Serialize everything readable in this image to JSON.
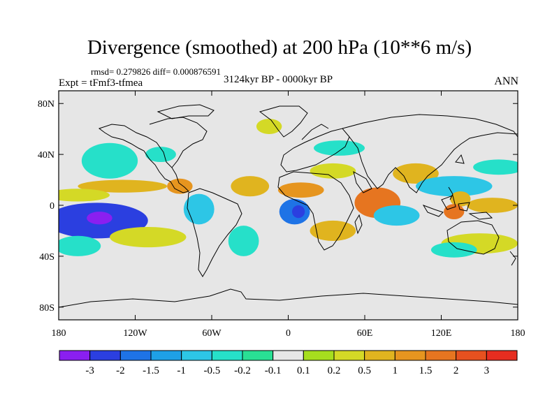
{
  "title": "Divergence (smoothed) at 200 hPa (10**6 m/s)",
  "stats": "rmsd= 0.279826 diff= 0.000876591",
  "experiment": "Expt = tFmf3-tfmea",
  "period": "3124kyr BP - 0000kyr BP",
  "season": "ANN",
  "map": {
    "background_color": "#e6e6e6",
    "lat_ticks": [
      {
        "value": 80,
        "label": "80N"
      },
      {
        "value": 40,
        "label": "40N"
      },
      {
        "value": 0,
        "label": "0"
      },
      {
        "value": -40,
        "label": "40S"
      },
      {
        "value": -80,
        "label": "80S"
      }
    ],
    "lon_ticks": [
      {
        "value": -180,
        "label": "180"
      },
      {
        "value": -120,
        "label": "120W"
      },
      {
        "value": -60,
        "label": "60W"
      },
      {
        "value": 0,
        "label": "0"
      },
      {
        "value": 60,
        "label": "60E"
      },
      {
        "value": 120,
        "label": "120E"
      },
      {
        "value": 180,
        "label": "180"
      }
    ],
    "anomalies": [
      {
        "lon": -150,
        "lat": -12,
        "rx": 40,
        "ry": 14,
        "level": -2
      },
      {
        "lon": -148,
        "lat": -10,
        "rx": 10,
        "ry": 5,
        "level": -3
      },
      {
        "lon": -140,
        "lat": 35,
        "rx": 22,
        "ry": 14,
        "level": -0.2
      },
      {
        "lon": -130,
        "lat": 15,
        "rx": 35,
        "ry": 5,
        "level": 0.5
      },
      {
        "lon": -165,
        "lat": 8,
        "rx": 25,
        "ry": 5,
        "level": 0.2
      },
      {
        "lon": -110,
        "lat": -25,
        "rx": 30,
        "ry": 8,
        "level": 0.2
      },
      {
        "lon": -165,
        "lat": -32,
        "rx": 18,
        "ry": 8,
        "level": -0.2
      },
      {
        "lon": -85,
        "lat": 15,
        "rx": 10,
        "ry": 6,
        "level": 1
      },
      {
        "lon": -100,
        "lat": 40,
        "rx": 12,
        "ry": 6,
        "level": -0.2
      },
      {
        "lon": -70,
        "lat": -3,
        "rx": 12,
        "ry": 12,
        "level": -0.5
      },
      {
        "lon": -30,
        "lat": 15,
        "rx": 15,
        "ry": 8,
        "level": 0.5
      },
      {
        "lon": -35,
        "lat": -28,
        "rx": 12,
        "ry": 12,
        "level": -0.2
      },
      {
        "lon": -15,
        "lat": 62,
        "rx": 10,
        "ry": 6,
        "level": 0.2
      },
      {
        "lon": 5,
        "lat": -5,
        "rx": 12,
        "ry": 10,
        "level": -1.5
      },
      {
        "lon": 8,
        "lat": -5,
        "rx": 5,
        "ry": 5,
        "level": -2
      },
      {
        "lon": 10,
        "lat": 12,
        "rx": 18,
        "ry": 6,
        "level": 1
      },
      {
        "lon": 40,
        "lat": 45,
        "rx": 20,
        "ry": 6,
        "level": -0.2
      },
      {
        "lon": 35,
        "lat": 27,
        "rx": 18,
        "ry": 6,
        "level": 0.2
      },
      {
        "lon": 35,
        "lat": -20,
        "rx": 18,
        "ry": 8,
        "level": 0.5
      },
      {
        "lon": 70,
        "lat": 2,
        "rx": 18,
        "ry": 12,
        "level": 1.5
      },
      {
        "lon": 85,
        "lat": -8,
        "rx": 18,
        "ry": 8,
        "level": -0.5
      },
      {
        "lon": 100,
        "lat": 25,
        "rx": 18,
        "ry": 8,
        "level": 0.5
      },
      {
        "lon": 130,
        "lat": 15,
        "rx": 30,
        "ry": 8,
        "level": -0.5
      },
      {
        "lon": 135,
        "lat": 5,
        "rx": 8,
        "ry": 6,
        "level": 0.5
      },
      {
        "lon": 130,
        "lat": -5,
        "rx": 8,
        "ry": 6,
        "level": 1.5
      },
      {
        "lon": 165,
        "lat": 30,
        "rx": 20,
        "ry": 6,
        "level": -0.2
      },
      {
        "lon": 160,
        "lat": 0,
        "rx": 20,
        "ry": 6,
        "level": 0.5
      },
      {
        "lon": 150,
        "lat": -30,
        "rx": 30,
        "ry": 8,
        "level": 0.2
      },
      {
        "lon": 130,
        "lat": -35,
        "rx": 18,
        "ry": 6,
        "level": -0.2
      }
    ]
  },
  "colorbar": {
    "colors": [
      "#8a1ff0",
      "#2b3fe0",
      "#1e73e6",
      "#1ea0e6",
      "#2dc6e6",
      "#26e0c9",
      "#29df94",
      "#e6e6e6",
      "#a6de1e",
      "#d4d926",
      "#e0b41f",
      "#e6951f",
      "#e67520",
      "#e6511f",
      "#e62d20"
    ],
    "labels": [
      "-3",
      "-2",
      "-1.5",
      "-1",
      "-0.5",
      "-0.2",
      "-0.1",
      "0.1",
      "0.2",
      "0.5",
      "1",
      "1.5",
      "2",
      "3"
    ]
  }
}
